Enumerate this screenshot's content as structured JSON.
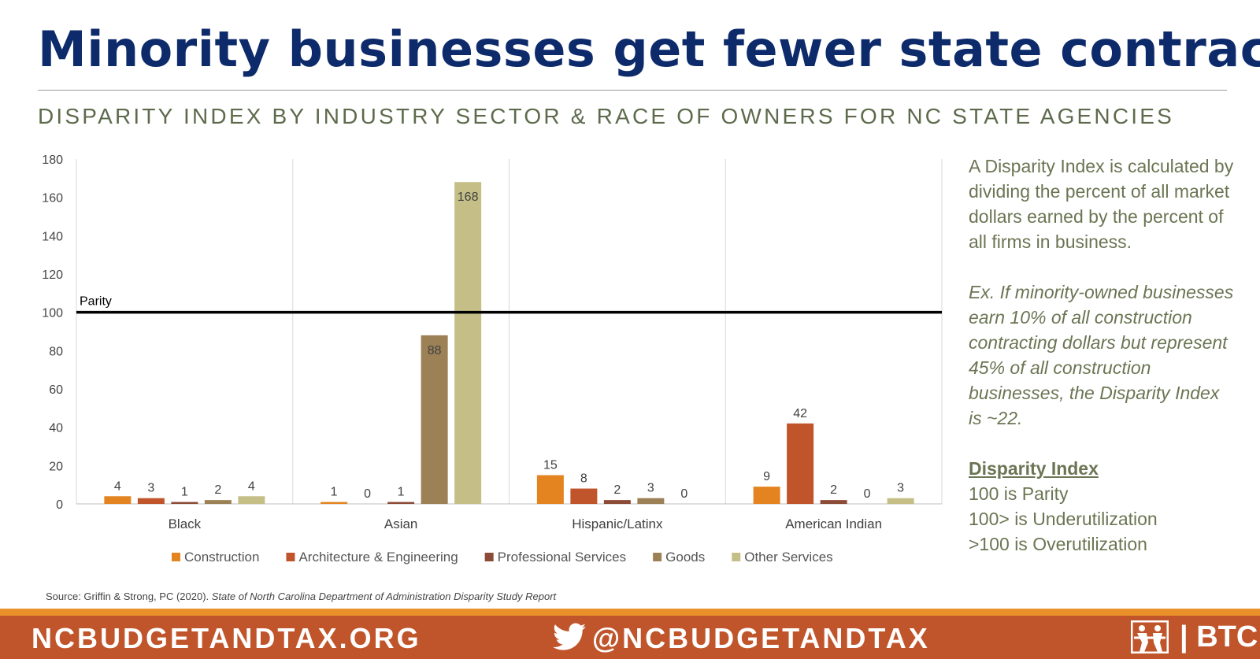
{
  "header": {
    "title": "Minority businesses get fewer state contracts",
    "subtitle": "DISPARITY INDEX BY INDUSTRY SECTOR & RACE OF OWNERS FOR NC STATE AGENCIES"
  },
  "chart_data": {
    "type": "bar",
    "categories": [
      "Black",
      "Asian",
      "Hispanic/Latinx",
      "American Indian"
    ],
    "series": [
      {
        "name": "Construction",
        "color": "#e38420",
        "values": [
          4,
          1,
          15,
          9
        ]
      },
      {
        "name": "Architecture & Engineering",
        "color": "#c0552b",
        "values": [
          3,
          0,
          8,
          42
        ]
      },
      {
        "name": "Professional Services",
        "color": "#8c4b36",
        "values": [
          1,
          1,
          2,
          2
        ]
      },
      {
        "name": "Goods",
        "color": "#9c8156",
        "values": [
          2,
          88,
          3,
          0
        ]
      },
      {
        "name": "Other Services",
        "color": "#c5bf87",
        "values": [
          4,
          168,
          0,
          3
        ]
      }
    ],
    "yticks": [
      0,
      20,
      40,
      60,
      80,
      100,
      120,
      140,
      160,
      180
    ],
    "ylim": [
      0,
      180
    ],
    "reference_line": {
      "value": 100,
      "label": "Parity"
    },
    "legend_position": "bottom",
    "grid": "vertical category separators"
  },
  "sidebar": {
    "para1": "A Disparity Index is calculated by dividing the percent of all market dollars earned by the percent of all firms in business.",
    "example": "Ex. If minority-owned businesses earn 10% of all construction contracting dollars but represent 45% of all construction businesses, the Disparity Index is ~22.",
    "heading": "Disparity Index",
    "lines": [
      "100 is Parity",
      "100> is Underutilization",
      ">100 is Overutilization"
    ]
  },
  "source": {
    "prefix": "Source: Griffin & Strong, PC (2020). ",
    "title": "State of North Carolina Department of Administration Disparity Study Report"
  },
  "footer": {
    "website": "NCBUDGETANDTAX.ORG",
    "twitter_icon": "twitter-bird-icon",
    "handle": "@NCBUDGETANDTAX",
    "logo_icon": "btc-logo-icon",
    "brand": "BTC"
  }
}
